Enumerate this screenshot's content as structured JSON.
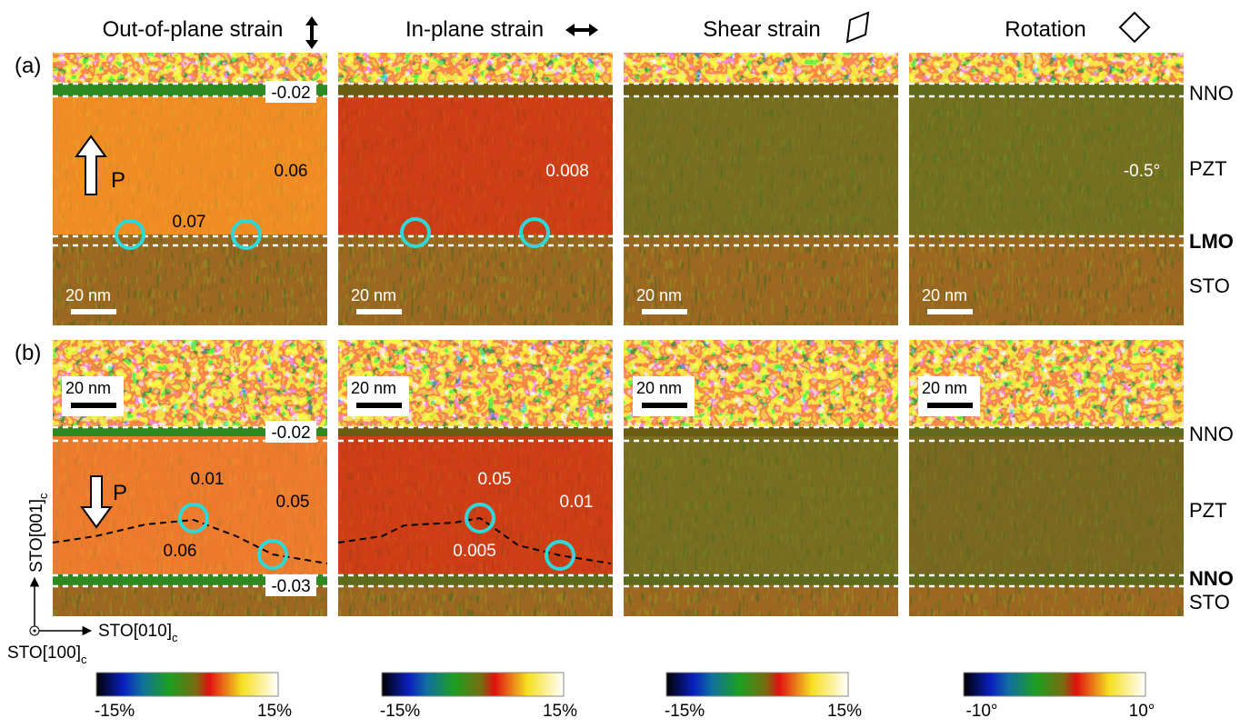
{
  "headers": [
    "Out-of-plane strain",
    "In-plane strain",
    "Shear strain",
    "Rotation"
  ],
  "rows": [
    {
      "label": "(a)",
      "layers": [
        "NNO",
        "PZT",
        "LMO",
        "STO"
      ],
      "panels": [
        {
          "annotations": [
            "-0.02",
            "0.06",
            "0.07",
            "P"
          ],
          "scale_bar": "20 nm"
        },
        {
          "annotations": [
            "0.008"
          ],
          "scale_bar": "20 nm"
        },
        {
          "scale_bar": "20 nm"
        },
        {
          "annotations": [
            "-0.5°"
          ],
          "scale_bar": "20 nm"
        }
      ]
    },
    {
      "label": "(b)",
      "layers": [
        "NNO",
        "PZT",
        "NNO",
        "STO"
      ],
      "panels": [
        {
          "annotations": [
            "-0.02",
            "0.01",
            "0.05",
            "0.06",
            "-0.03",
            "P"
          ],
          "scale_bar": "20 nm"
        },
        {
          "annotations": [
            "0.05",
            "0.01",
            "0.005"
          ],
          "scale_bar": "20 nm"
        },
        {
          "scale_bar": "20 nm"
        },
        {
          "scale_bar": "20 nm"
        }
      ]
    }
  ],
  "axes": {
    "vertical": "STO[001]",
    "horizontal": "STO[010]",
    "normal": "STO[100]",
    "subscript": "c"
  },
  "colorbars": [
    {
      "min": "-15%",
      "max": "15%"
    },
    {
      "min": "-15%",
      "max": "15%"
    },
    {
      "min": "-15%",
      "max": "15%"
    },
    {
      "min": "-10°",
      "max": "10°"
    }
  ]
}
